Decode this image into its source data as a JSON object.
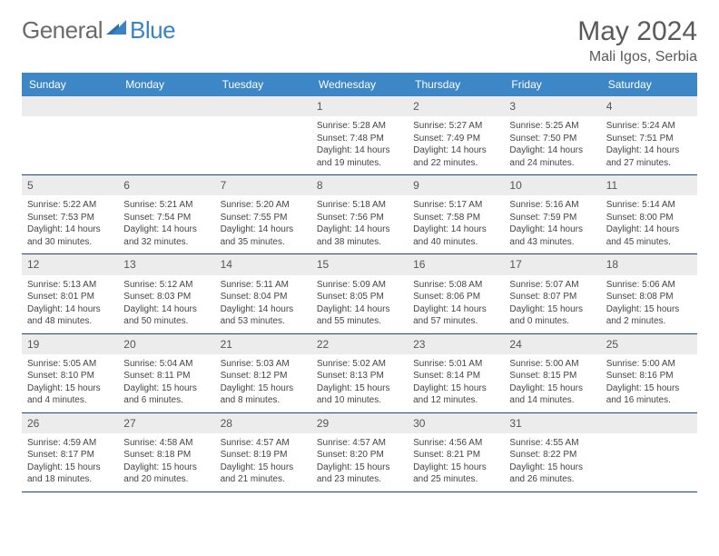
{
  "logo": {
    "general": "General",
    "blue": "Blue"
  },
  "title": {
    "month": "May 2024",
    "location": "Mali Igos, Serbia"
  },
  "colors": {
    "header_bg": "#3d87c7",
    "header_text": "#ffffff",
    "date_bg": "#ececec",
    "border": "#1a4a7a",
    "logo_blue": "#3b82c4",
    "logo_gray": "#6b6b6b"
  },
  "day_names": [
    "Sunday",
    "Monday",
    "Tuesday",
    "Wednesday",
    "Thursday",
    "Friday",
    "Saturday"
  ],
  "weeks": [
    [
      null,
      null,
      null,
      {
        "d": "1",
        "sr": "Sunrise: 5:28 AM",
        "ss": "Sunset: 7:48 PM",
        "dl1": "Daylight: 14 hours",
        "dl2": "and 19 minutes."
      },
      {
        "d": "2",
        "sr": "Sunrise: 5:27 AM",
        "ss": "Sunset: 7:49 PM",
        "dl1": "Daylight: 14 hours",
        "dl2": "and 22 minutes."
      },
      {
        "d": "3",
        "sr": "Sunrise: 5:25 AM",
        "ss": "Sunset: 7:50 PM",
        "dl1": "Daylight: 14 hours",
        "dl2": "and 24 minutes."
      },
      {
        "d": "4",
        "sr": "Sunrise: 5:24 AM",
        "ss": "Sunset: 7:51 PM",
        "dl1": "Daylight: 14 hours",
        "dl2": "and 27 minutes."
      }
    ],
    [
      {
        "d": "5",
        "sr": "Sunrise: 5:22 AM",
        "ss": "Sunset: 7:53 PM",
        "dl1": "Daylight: 14 hours",
        "dl2": "and 30 minutes."
      },
      {
        "d": "6",
        "sr": "Sunrise: 5:21 AM",
        "ss": "Sunset: 7:54 PM",
        "dl1": "Daylight: 14 hours",
        "dl2": "and 32 minutes."
      },
      {
        "d": "7",
        "sr": "Sunrise: 5:20 AM",
        "ss": "Sunset: 7:55 PM",
        "dl1": "Daylight: 14 hours",
        "dl2": "and 35 minutes."
      },
      {
        "d": "8",
        "sr": "Sunrise: 5:18 AM",
        "ss": "Sunset: 7:56 PM",
        "dl1": "Daylight: 14 hours",
        "dl2": "and 38 minutes."
      },
      {
        "d": "9",
        "sr": "Sunrise: 5:17 AM",
        "ss": "Sunset: 7:58 PM",
        "dl1": "Daylight: 14 hours",
        "dl2": "and 40 minutes."
      },
      {
        "d": "10",
        "sr": "Sunrise: 5:16 AM",
        "ss": "Sunset: 7:59 PM",
        "dl1": "Daylight: 14 hours",
        "dl2": "and 43 minutes."
      },
      {
        "d": "11",
        "sr": "Sunrise: 5:14 AM",
        "ss": "Sunset: 8:00 PM",
        "dl1": "Daylight: 14 hours",
        "dl2": "and 45 minutes."
      }
    ],
    [
      {
        "d": "12",
        "sr": "Sunrise: 5:13 AM",
        "ss": "Sunset: 8:01 PM",
        "dl1": "Daylight: 14 hours",
        "dl2": "and 48 minutes."
      },
      {
        "d": "13",
        "sr": "Sunrise: 5:12 AM",
        "ss": "Sunset: 8:03 PM",
        "dl1": "Daylight: 14 hours",
        "dl2": "and 50 minutes."
      },
      {
        "d": "14",
        "sr": "Sunrise: 5:11 AM",
        "ss": "Sunset: 8:04 PM",
        "dl1": "Daylight: 14 hours",
        "dl2": "and 53 minutes."
      },
      {
        "d": "15",
        "sr": "Sunrise: 5:09 AM",
        "ss": "Sunset: 8:05 PM",
        "dl1": "Daylight: 14 hours",
        "dl2": "and 55 minutes."
      },
      {
        "d": "16",
        "sr": "Sunrise: 5:08 AM",
        "ss": "Sunset: 8:06 PM",
        "dl1": "Daylight: 14 hours",
        "dl2": "and 57 minutes."
      },
      {
        "d": "17",
        "sr": "Sunrise: 5:07 AM",
        "ss": "Sunset: 8:07 PM",
        "dl1": "Daylight: 15 hours",
        "dl2": "and 0 minutes."
      },
      {
        "d": "18",
        "sr": "Sunrise: 5:06 AM",
        "ss": "Sunset: 8:08 PM",
        "dl1": "Daylight: 15 hours",
        "dl2": "and 2 minutes."
      }
    ],
    [
      {
        "d": "19",
        "sr": "Sunrise: 5:05 AM",
        "ss": "Sunset: 8:10 PM",
        "dl1": "Daylight: 15 hours",
        "dl2": "and 4 minutes."
      },
      {
        "d": "20",
        "sr": "Sunrise: 5:04 AM",
        "ss": "Sunset: 8:11 PM",
        "dl1": "Daylight: 15 hours",
        "dl2": "and 6 minutes."
      },
      {
        "d": "21",
        "sr": "Sunrise: 5:03 AM",
        "ss": "Sunset: 8:12 PM",
        "dl1": "Daylight: 15 hours",
        "dl2": "and 8 minutes."
      },
      {
        "d": "22",
        "sr": "Sunrise: 5:02 AM",
        "ss": "Sunset: 8:13 PM",
        "dl1": "Daylight: 15 hours",
        "dl2": "and 10 minutes."
      },
      {
        "d": "23",
        "sr": "Sunrise: 5:01 AM",
        "ss": "Sunset: 8:14 PM",
        "dl1": "Daylight: 15 hours",
        "dl2": "and 12 minutes."
      },
      {
        "d": "24",
        "sr": "Sunrise: 5:00 AM",
        "ss": "Sunset: 8:15 PM",
        "dl1": "Daylight: 15 hours",
        "dl2": "and 14 minutes."
      },
      {
        "d": "25",
        "sr": "Sunrise: 5:00 AM",
        "ss": "Sunset: 8:16 PM",
        "dl1": "Daylight: 15 hours",
        "dl2": "and 16 minutes."
      }
    ],
    [
      {
        "d": "26",
        "sr": "Sunrise: 4:59 AM",
        "ss": "Sunset: 8:17 PM",
        "dl1": "Daylight: 15 hours",
        "dl2": "and 18 minutes."
      },
      {
        "d": "27",
        "sr": "Sunrise: 4:58 AM",
        "ss": "Sunset: 8:18 PM",
        "dl1": "Daylight: 15 hours",
        "dl2": "and 20 minutes."
      },
      {
        "d": "28",
        "sr": "Sunrise: 4:57 AM",
        "ss": "Sunset: 8:19 PM",
        "dl1": "Daylight: 15 hours",
        "dl2": "and 21 minutes."
      },
      {
        "d": "29",
        "sr": "Sunrise: 4:57 AM",
        "ss": "Sunset: 8:20 PM",
        "dl1": "Daylight: 15 hours",
        "dl2": "and 23 minutes."
      },
      {
        "d": "30",
        "sr": "Sunrise: 4:56 AM",
        "ss": "Sunset: 8:21 PM",
        "dl1": "Daylight: 15 hours",
        "dl2": "and 25 minutes."
      },
      {
        "d": "31",
        "sr": "Sunrise: 4:55 AM",
        "ss": "Sunset: 8:22 PM",
        "dl1": "Daylight: 15 hours",
        "dl2": "and 26 minutes."
      },
      null
    ]
  ]
}
